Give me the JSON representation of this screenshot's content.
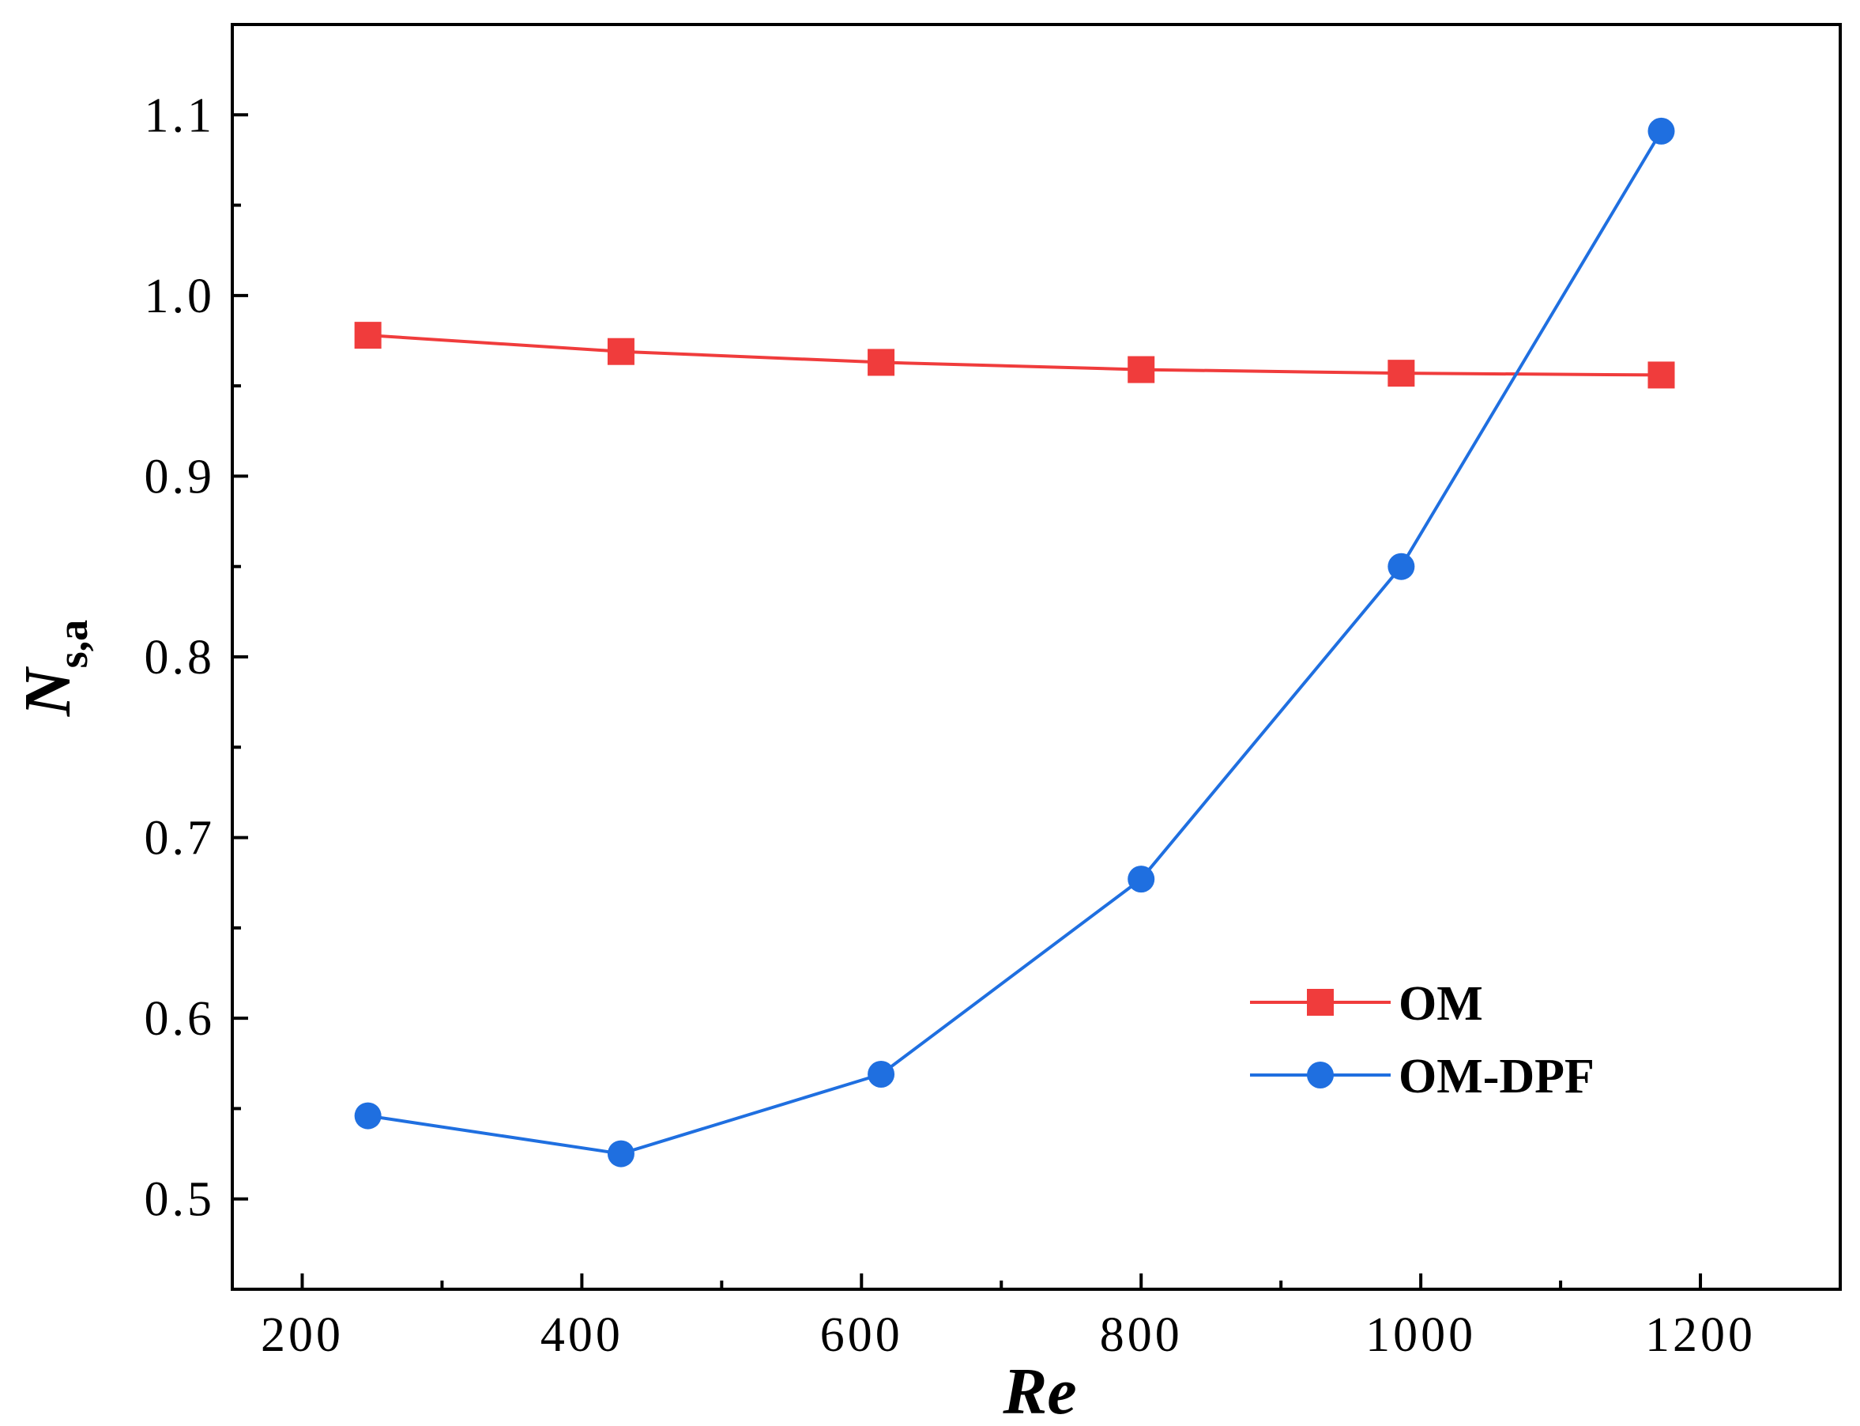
{
  "chart_data": {
    "type": "line",
    "title": "",
    "xlabel": "Re",
    "ylabel_main": "N",
    "ylabel_sub": "s,a",
    "xlim": [
      150,
      1300
    ],
    "ylim": [
      0.45,
      1.15
    ],
    "x_ticks": [
      200,
      400,
      600,
      800,
      1000,
      1200
    ],
    "x_tick_labels": [
      "200",
      "400",
      "600",
      "800",
      "1000",
      "1200"
    ],
    "y_ticks": [
      0.5,
      0.6,
      0.7,
      0.8,
      0.9,
      1.0,
      1.1
    ],
    "y_tick_labels": [
      "0.5",
      "0.6",
      "0.7",
      "0.8",
      "0.9",
      "1.0",
      "1.1"
    ],
    "legend_position": "bottom-right",
    "grid": false,
    "series": [
      {
        "name": "OM",
        "color": "#f03c3c",
        "marker": "square",
        "x": [
          247,
          428,
          614,
          800,
          986,
          1172
        ],
        "values": [
          0.978,
          0.969,
          0.963,
          0.959,
          0.957,
          0.956
        ]
      },
      {
        "name": "OM-DPF",
        "color": "#1f6fe0",
        "marker": "circle",
        "x": [
          247,
          428,
          614,
          800,
          986,
          1172
        ],
        "values": [
          0.546,
          0.525,
          0.569,
          0.677,
          0.85,
          1.091
        ]
      }
    ]
  }
}
